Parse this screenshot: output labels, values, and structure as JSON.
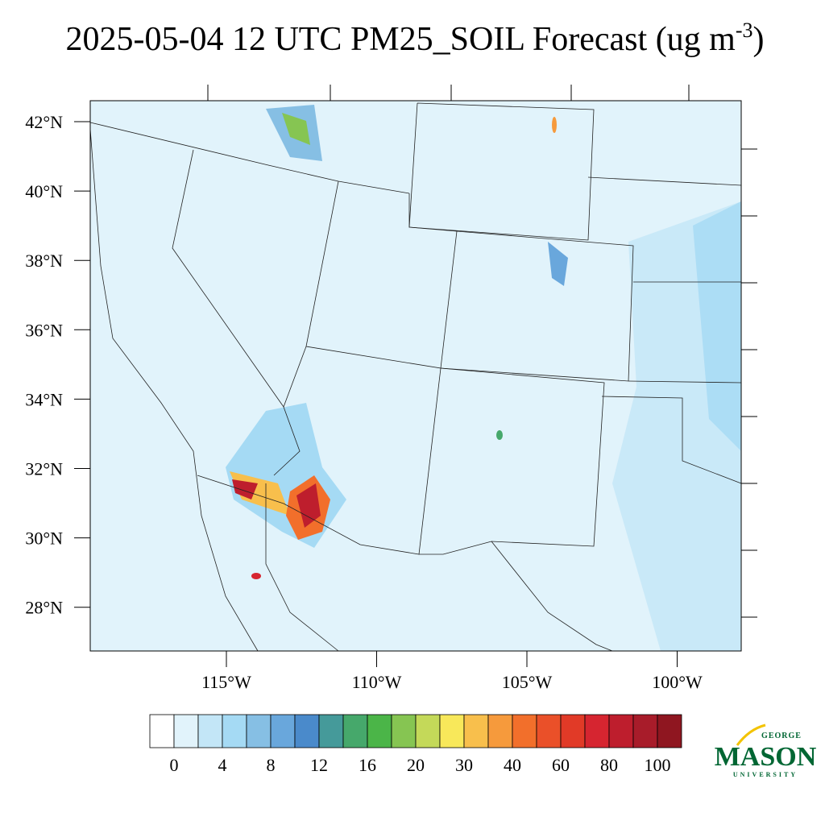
{
  "title": "2025-05-04 12 UTC PM25_SOIL Forecast (ug m",
  "title_superscript": "-3",
  "title_end": ")",
  "lat_labels": [
    "42°N",
    "40°N",
    "38°N",
    "36°N",
    "34°N",
    "32°N",
    "30°N",
    "28°N"
  ],
  "lon_labels": [
    "115°W",
    "110°W",
    "105°W",
    "100°W"
  ],
  "colorbar": {
    "colors": [
      "#ffffff",
      "#e1f3fb",
      "#c3e6f7",
      "#a5daf4",
      "#86bfe4",
      "#69a7dc",
      "#4a8acb",
      "#459a9a",
      "#46a86b",
      "#4bb548",
      "#86c552",
      "#c4d959",
      "#f8e85a",
      "#f8bf4c",
      "#f69a3c",
      "#f26f2b",
      "#ea5029",
      "#e13a27",
      "#d62530",
      "#be1e2d",
      "#a81c2a",
      "#8f1620"
    ],
    "labels": [
      "0",
      "4",
      "8",
      "12",
      "16",
      "20",
      "30",
      "40",
      "60",
      "80",
      "100"
    ]
  },
  "logo": {
    "top": "GEORGE",
    "main": "MASON",
    "bottom": "UNIVERSITY"
  }
}
